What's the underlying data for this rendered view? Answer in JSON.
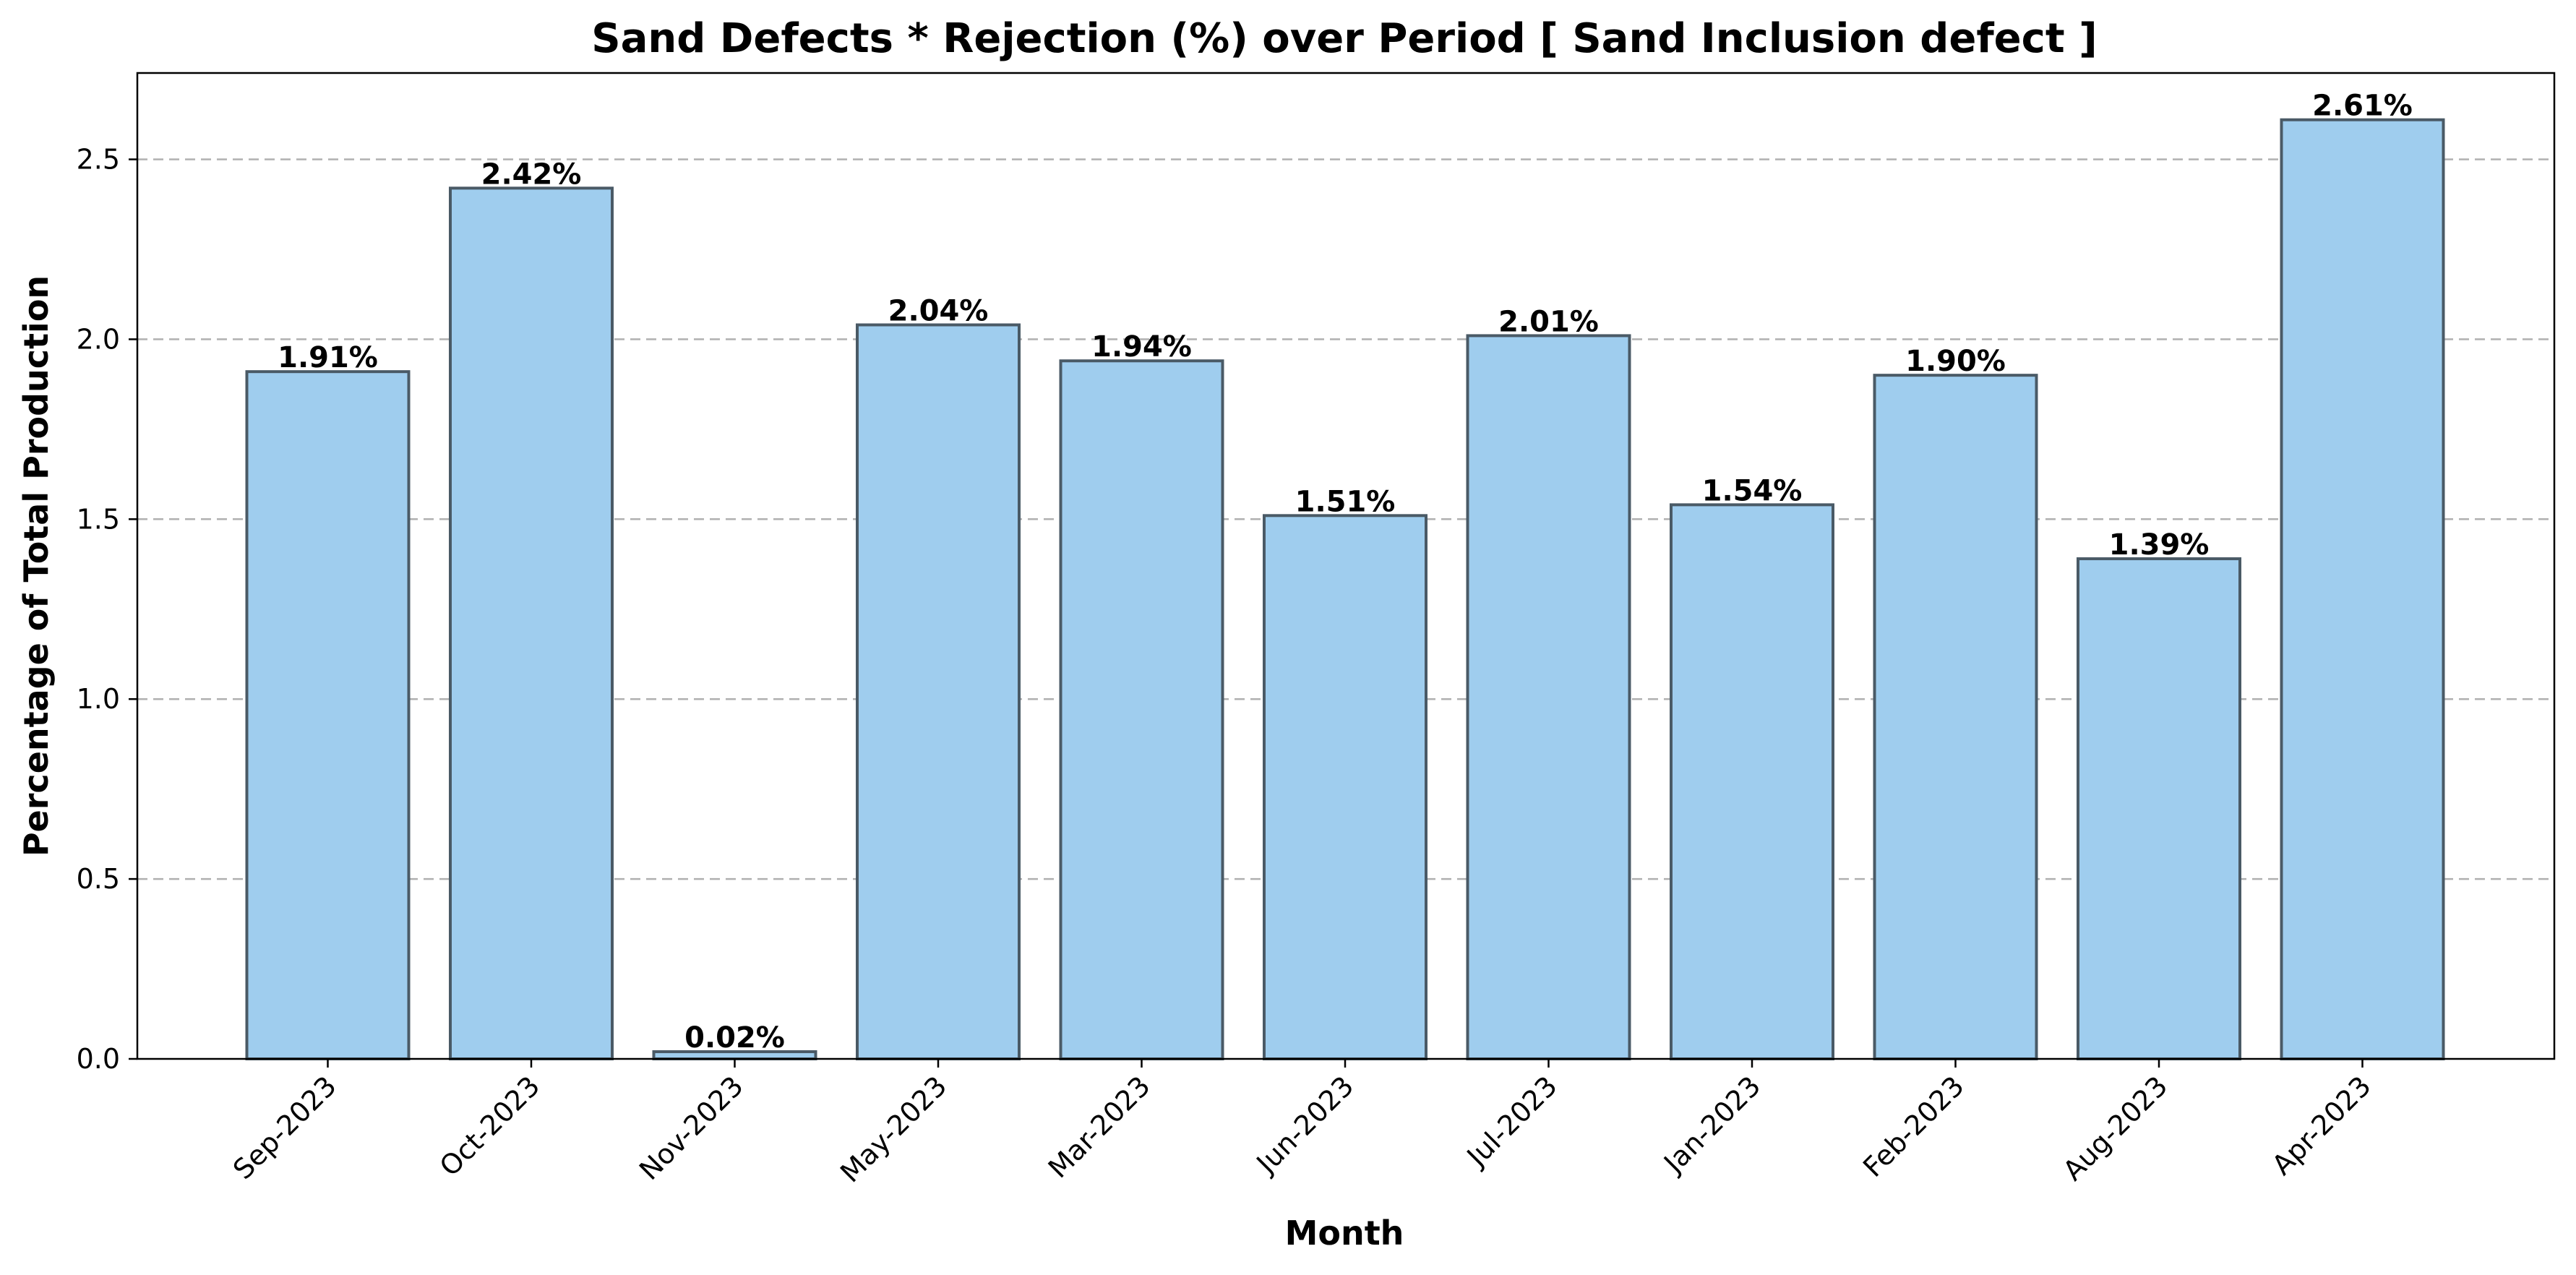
{
  "chart_data": {
    "type": "bar",
    "title": "Sand Defects * Rejection (%) over Period [ Sand Inclusion defect ]",
    "xlabel": "Month",
    "ylabel": "Percentage of Total Production",
    "categories": [
      "Sep-2023",
      "Oct-2023",
      "Nov-2023",
      "May-2023",
      "Mar-2023",
      "Jun-2023",
      "Jul-2023",
      "Jan-2023",
      "Feb-2023",
      "Aug-2023",
      "Apr-2023"
    ],
    "values": [
      1.91,
      2.42,
      0.02,
      2.04,
      1.94,
      1.51,
      2.01,
      1.54,
      1.9,
      1.39,
      2.61
    ],
    "data_labels": [
      "1.91%",
      "2.42%",
      "0.02%",
      "2.04%",
      "1.94%",
      "1.51%",
      "2.01%",
      "1.54%",
      "1.90%",
      "1.39%",
      "2.61%"
    ],
    "ylim": [
      0,
      2.74
    ],
    "yticks": [
      0.0,
      0.5,
      1.0,
      1.5,
      2.0,
      2.5
    ],
    "ytick_labels": [
      "0.0",
      "0.5",
      "1.0",
      "1.5",
      "2.0",
      "2.5"
    ],
    "grid": "y-dashed",
    "bar_color": "#9fcdee",
    "bar_edge_color": "#4a5a66"
  }
}
